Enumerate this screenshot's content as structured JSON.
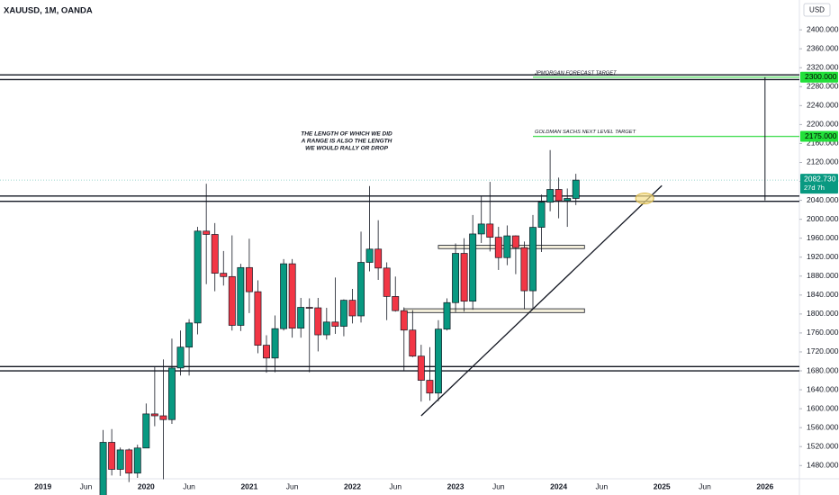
{
  "chart_data": {
    "type": "candlestick",
    "title": "XAUUSD, 1M, OANDA",
    "currency": "USD",
    "x": [
      "2019-08",
      "2019-09",
      "2019-10",
      "2019-11",
      "2019-12",
      "2020-01",
      "2020-02",
      "2020-03",
      "2020-04",
      "2020-05",
      "2020-06",
      "2020-07",
      "2020-08",
      "2020-09",
      "2020-10",
      "2020-11",
      "2020-12",
      "2021-01",
      "2021-02",
      "2021-03",
      "2021-04",
      "2021-05",
      "2021-06",
      "2021-07",
      "2021-08",
      "2021-09",
      "2021-10",
      "2021-11",
      "2021-12",
      "2022-01",
      "2022-02",
      "2022-03",
      "2022-04",
      "2022-05",
      "2022-06",
      "2022-07",
      "2022-08",
      "2022-09",
      "2022-10",
      "2022-11",
      "2022-12",
      "2023-01",
      "2023-02",
      "2023-03",
      "2023-04",
      "2023-05",
      "2023-06",
      "2023-07",
      "2023-08",
      "2023-09",
      "2023-10",
      "2023-11",
      "2023-12",
      "2024-01",
      "2024-02",
      "2024-03"
    ],
    "open": [
      1413,
      1529,
      1472,
      1513,
      1464,
      1517,
      1589,
      1585,
      1577,
      1686,
      1730,
      1781,
      1975,
      1968,
      1886,
      1879,
      1776,
      1898,
      1847,
      1734,
      1707,
      1769,
      1906,
      1770,
      1814,
      1813,
      1756,
      1783,
      1774,
      1829,
      1796,
      1909,
      1937,
      1897,
      1837,
      1807,
      1766,
      1711,
      1660,
      1633,
      1768,
      1824,
      1928,
      1827,
      1969,
      1990,
      1962,
      1919,
      1965,
      1940,
      1849,
      1983,
      2036,
      2063,
      2039,
      2044
    ],
    "high": [
      1555,
      1557,
      1518,
      1516,
      1524,
      1611,
      1689,
      1704,
      1748,
      1765,
      1789,
      1984,
      2075,
      1992,
      1933,
      1966,
      1906,
      1959,
      1871,
      1755,
      1797,
      1916,
      1916,
      1834,
      1833,
      1834,
      1813,
      1877,
      1831,
      1853,
      1974,
      2070,
      1998,
      1909,
      1879,
      1814,
      1808,
      1735,
      1730,
      1787,
      1833,
      1949,
      1960,
      2009,
      2048,
      2079,
      1984,
      1987,
      1966,
      1953,
      2009,
      2052,
      2146,
      2088,
      2065,
      2096
    ],
    "low": [
      1400,
      1459,
      1458,
      1445,
      1454,
      1517,
      1563,
      1451,
      1568,
      1670,
      1670,
      1757,
      1863,
      1848,
      1860,
      1765,
      1764,
      1802,
      1717,
      1676,
      1677,
      1765,
      1750,
      1750,
      1677,
      1721,
      1746,
      1758,
      1753,
      1780,
      1782,
      1890,
      1872,
      1787,
      1805,
      1681,
      1709,
      1615,
      1617,
      1616,
      1765,
      1804,
      1805,
      1809,
      1950,
      1932,
      1893,
      1903,
      1884,
      1810,
      1810,
      1931,
      2017,
      2002,
      1984,
      2030
    ],
    "close": [
      1529,
      1472,
      1513,
      1464,
      1517,
      1589,
      1585,
      1577,
      1686,
      1730,
      1781,
      1975,
      1968,
      1886,
      1879,
      1776,
      1898,
      1847,
      1734,
      1707,
      1769,
      1906,
      1770,
      1814,
      1813,
      1756,
      1783,
      1774,
      1829,
      1796,
      1909,
      1937,
      1897,
      1837,
      1807,
      1766,
      1711,
      1660,
      1633,
      1768,
      1824,
      1928,
      1827,
      1969,
      1990,
      1962,
      1919,
      1965,
      1940,
      1849,
      1983,
      2036,
      2063,
      2039,
      2044,
      2082.73
    ],
    "up_color": "#089981",
    "down_color": "#f23645",
    "xlim": [
      "2018-08",
      "2026-05"
    ],
    "xticks": [
      {
        "value": "2019-01",
        "label": "2019"
      },
      {
        "value": "2019-06",
        "label": "Jun"
      },
      {
        "value": "2020-01",
        "label": "2020"
      },
      {
        "value": "2020-06",
        "label": "Jun"
      },
      {
        "value": "2021-01",
        "label": "2021"
      },
      {
        "value": "2021-06",
        "label": "Jun"
      },
      {
        "value": "2022-01",
        "label": "2022"
      },
      {
        "value": "2022-06",
        "label": "Jun"
      },
      {
        "value": "2023-01",
        "label": "2023"
      },
      {
        "value": "2023-06",
        "label": "Jun"
      },
      {
        "value": "2024-01",
        "label": "2024"
      },
      {
        "value": "2024-06",
        "label": "Jun"
      },
      {
        "value": "2025-01",
        "label": "2025"
      },
      {
        "value": "2025-06",
        "label": "Jun"
      },
      {
        "value": "2026-01",
        "label": "2026"
      }
    ],
    "ylim": [
      1452,
      2463
    ],
    "yticks": [
      {
        "value": 1480,
        "label": "1480.000"
      },
      {
        "value": 1520,
        "label": "1520.000"
      },
      {
        "value": 1560,
        "label": "1560.000"
      },
      {
        "value": 1600,
        "label": "1600.000"
      },
      {
        "value": 1640,
        "label": "1640.000"
      },
      {
        "value": 1680,
        "label": "1680.000"
      },
      {
        "value": 1720,
        "label": "1720.000"
      },
      {
        "value": 1760,
        "label": "1760.000"
      },
      {
        "value": 1800,
        "label": "1800.000"
      },
      {
        "value": 1840,
        "label": "1840.000"
      },
      {
        "value": 1880,
        "label": "1880.000"
      },
      {
        "value": 1920,
        "label": "1920.000"
      },
      {
        "value": 1960,
        "label": "1960.000"
      },
      {
        "value": 2000,
        "label": "2000.000"
      },
      {
        "value": 2040,
        "label": "2040.000"
      },
      {
        "value": 2080,
        "label": "2080.000"
      },
      {
        "value": 2120,
        "label": "2120.000"
      },
      {
        "value": 2160,
        "label": "2160.000"
      },
      {
        "value": 2200,
        "label": "2200.000"
      },
      {
        "value": 2240,
        "label": "2240.000"
      },
      {
        "value": 2280,
        "label": "2280.000"
      },
      {
        "value": 2320,
        "label": "2320.000"
      },
      {
        "value": 2360,
        "label": "2360.000"
      },
      {
        "value": 2400,
        "label": "2400.000"
      }
    ],
    "last_price": {
      "value": 2082.73,
      "label": "2082.730",
      "countdown": "27d 7h"
    },
    "zones": [
      {
        "low": 2295,
        "high": 2305
      },
      {
        "low": 2038,
        "high": 2049
      },
      {
        "low": 1680,
        "high": 1689
      }
    ],
    "targets": [
      {
        "name": "JPMORGAN FORECAST TARGET",
        "value": 2300,
        "label": "2300.000",
        "start": "2023-10"
      },
      {
        "name": "GOLDMAN SACHS NEXT LEVEL TARGET",
        "value": 2175,
        "label": "2175.000",
        "start": "2023-10"
      }
    ],
    "boxes": [
      {
        "start": "2022-11",
        "end": "2024-04",
        "low": 1938,
        "high": 1945
      },
      {
        "start": "2022-07",
        "end": "2024-04",
        "low": 1803,
        "high": 1811
      }
    ],
    "trendline": {
      "x": [
        "2022-09",
        "2025-01"
      ],
      "y": [
        1585,
        2071
      ]
    },
    "measure": {
      "x": "2026-01",
      "from": 2040,
      "to": 2300
    },
    "highlight": {
      "x": "2024-11",
      "value": 2044
    },
    "note": [
      "THE LENGTH OF WHICH WE DID",
      "A RANGE IS ALSO THE LENGTH",
      "WE WOULD RALLY OR DROP"
    ]
  }
}
